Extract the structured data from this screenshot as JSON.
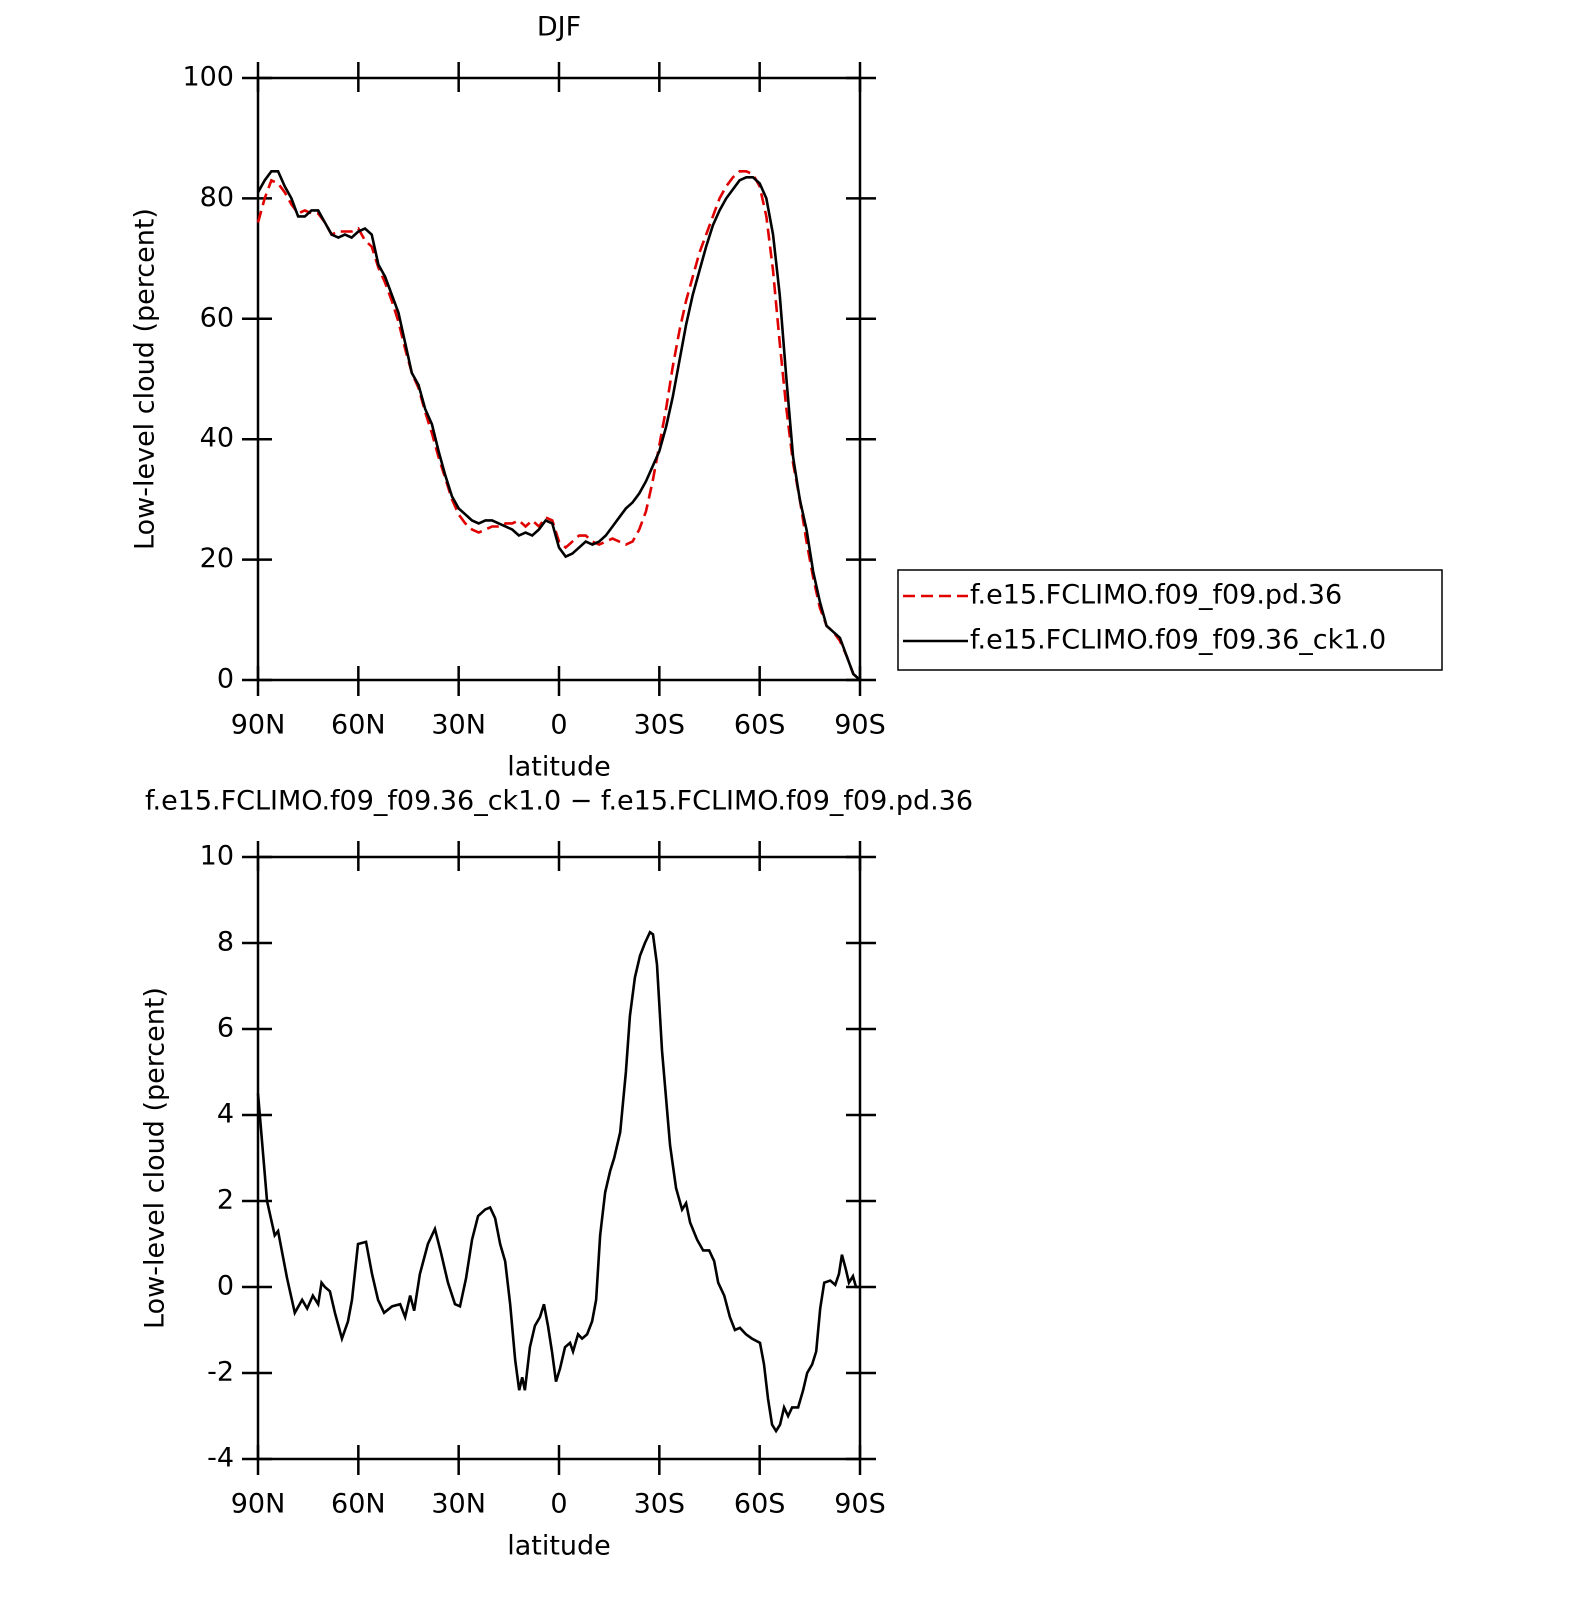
{
  "chart_data": [
    {
      "type": "line",
      "title": "DJF",
      "x_label": "latitude",
      "y_label": "Low-level cloud (percent)",
      "x": [
        90,
        88,
        86,
        84,
        82,
        80,
        78,
        76,
        74,
        72,
        70,
        68,
        66,
        64,
        62,
        60,
        58,
        56,
        54,
        52,
        50,
        48,
        46,
        44,
        42,
        40,
        38,
        36,
        34,
        32,
        30,
        28,
        26,
        24,
        22,
        20,
        18,
        16,
        14,
        12,
        10,
        8,
        6,
        4,
        2,
        0,
        -2,
        -4,
        -6,
        -8,
        -10,
        -12,
        -14,
        -16,
        -18,
        -20,
        -22,
        -24,
        -26,
        -28,
        -30,
        -32,
        -34,
        -36,
        -38,
        -40,
        -42,
        -44,
        -46,
        -48,
        -50,
        -52,
        -54,
        -56,
        -58,
        -60,
        -62,
        -64,
        -66,
        -68,
        -70,
        -72,
        -74,
        -76,
        -78,
        -80,
        -82,
        -84,
        -86,
        -88,
        -90
      ],
      "series": [
        {
          "name": "f.e15.FCLIMO.f09_f09.pd.36",
          "color": "#e00000",
          "line_style": "dashed",
          "values": [
            76,
            80,
            83,
            82.5,
            81,
            79,
            77.5,
            78,
            77.5,
            77.5,
            76,
            74,
            74.5,
            74.5,
            74.5,
            75,
            73,
            72,
            68.5,
            66,
            63,
            59.5,
            55,
            51,
            48.5,
            44.5,
            41,
            37,
            33.5,
            30,
            27.5,
            26,
            25,
            24.5,
            25,
            25.5,
            25.5,
            26,
            26,
            26.5,
            25.5,
            26.5,
            25.5,
            27,
            26.5,
            23,
            22,
            23,
            24,
            24,
            23,
            22.5,
            23,
            23.5,
            23,
            22.5,
            23,
            25,
            28,
            33,
            39,
            45,
            52,
            58,
            63,
            67,
            71,
            74,
            77,
            80,
            82,
            83.5,
            84.5,
            84.5,
            84,
            82,
            77,
            68,
            56,
            45,
            36,
            30,
            23,
            17,
            12,
            9,
            8,
            6.5,
            4,
            1,
            0
          ]
        },
        {
          "name": "f.e15.FCLIMO.f09_f09.36_ck1.0",
          "color": "#000000",
          "line_style": "solid",
          "values": [
            81,
            83,
            84.5,
            84.5,
            82,
            80,
            77,
            77,
            78,
            78,
            76,
            74,
            73.5,
            74,
            73.5,
            74.5,
            75,
            74,
            69,
            67,
            64,
            61,
            56,
            51,
            49,
            45,
            42.5,
            38,
            34,
            30.5,
            28.5,
            27.5,
            26.5,
            26,
            26.5,
            26.5,
            26,
            25.5,
            25,
            24,
            24.5,
            24,
            25,
            26.5,
            26,
            22,
            20.5,
            21,
            22,
            23,
            22.5,
            23,
            24,
            25.5,
            27,
            28.5,
            29.5,
            31,
            33,
            35.5,
            38,
            42,
            47,
            53,
            59,
            64,
            68,
            72,
            75.5,
            78,
            80,
            81.5,
            83,
            83.5,
            83.5,
            82.5,
            80,
            74,
            64,
            50,
            37,
            30,
            25,
            18,
            13,
            9,
            8,
            7,
            4,
            1,
            0
          ]
        }
      ],
      "xlim": [
        90,
        -90
      ],
      "xticks": [
        {
          "value": 90,
          "label": "90N"
        },
        {
          "value": 60,
          "label": "60N"
        },
        {
          "value": 30,
          "label": "30N"
        },
        0,
        {
          "value": -30,
          "label": "30S"
        },
        {
          "value": -60,
          "label": "60S"
        },
        {
          "value": -90,
          "label": "90S"
        }
      ],
      "ylim": [
        0,
        100
      ],
      "yticks": [
        0,
        20,
        40,
        60,
        80,
        100
      ],
      "legend_position": "right"
    },
    {
      "type": "line",
      "title": "f.e15.FCLIMO.f09_f09.36_ck1.0 − f.e15.FCLIMO.f09_f09.pd.36",
      "x_label": "latitude",
      "y_label": "Low-level cloud (percent)",
      "x": [
        90,
        87.3,
        85,
        84,
        81.3,
        79,
        76.8,
        75.3,
        73.6,
        72,
        71,
        70,
        68.5,
        67,
        64.9,
        63.1,
        61.9,
        60.1,
        57.7,
        55.9,
        54.1,
        52.3,
        49.9,
        47.5,
        46,
        44.5,
        43.3,
        41.6,
        39.2,
        37.1,
        35.3,
        33.2,
        31.1,
        29.6,
        27.8,
        26,
        24.2,
        22.1,
        20.6,
        19.1,
        17.6,
        16.1,
        14.6,
        13.1,
        11.9,
        11,
        10.2,
        8.7,
        7.2,
        5.7,
        4.5,
        3.3,
        2.1,
        0.9,
        -0.3,
        -1.8,
        -3.3,
        -4.2,
        -5.7,
        -6.9,
        -8.4,
        -9.9,
        -11.1,
        -12.3,
        -13.8,
        -15.3,
        -16.5,
        -18.3,
        -20,
        -21.2,
        -22.7,
        -24.2,
        -25.7,
        -27.2,
        -28.1,
        -29.3,
        -30.8,
        -33.2,
        -35,
        -36.8,
        -38,
        -39.2,
        -41.3,
        -43.1,
        -44.9,
        -46.4,
        -47.6,
        -49.4,
        -51.1,
        -52.6,
        -54.1,
        -55.9,
        -57.7,
        -60.1,
        -61.3,
        -62.5,
        -63.7,
        -64.9,
        -66.1,
        -67.3,
        -68.5,
        -69.7,
        -71.5,
        -73,
        -74.2,
        -75.7,
        -76.9,
        -78.1,
        -79.3,
        -81.1,
        -82.6,
        -83.7,
        -84.6,
        -85.8,
        -86.7,
        -87.9,
        -88.8,
        -90
      ],
      "values": [
        4.5,
        2,
        1.2,
        1.3,
        0.2,
        -0.6,
        -0.3,
        -0.5,
        -0.2,
        -0.4,
        0.1,
        0,
        -0.1,
        -0.6,
        -1.2,
        -0.8,
        -0.3,
        1,
        1.05,
        0.3,
        -0.3,
        -0.6,
        -0.45,
        -0.4,
        -0.7,
        -0.2,
        -0.55,
        0.3,
        1,
        1.35,
        0.8,
        0.1,
        -0.4,
        -0.45,
        0.2,
        1.1,
        1.65,
        1.8,
        1.85,
        1.6,
        1,
        0.6,
        -0.4,
        -1.7,
        -2.4,
        -2.1,
        -2.4,
        -1.4,
        -0.9,
        -0.7,
        -0.4,
        -0.9,
        -1.5,
        -2.2,
        -1.9,
        -1.4,
        -1.3,
        -1.5,
        -1.1,
        -1.2,
        -1.1,
        -0.8,
        -0.3,
        1.2,
        2.2,
        2.7,
        3,
        3.6,
        5,
        6.3,
        7.2,
        7.7,
        8,
        8.25,
        8.2,
        7.5,
        5.5,
        3.3,
        2.3,
        1.8,
        1.95,
        1.5,
        1.1,
        0.85,
        0.85,
        0.6,
        0.1,
        -0.2,
        -0.7,
        -1,
        -0.95,
        -1.1,
        -1.2,
        -1.3,
        -1.8,
        -2.6,
        -3.2,
        -3.35,
        -3.2,
        -2.8,
        -3,
        -2.8,
        -2.8,
        -2.4,
        -2,
        -1.8,
        -1.5,
        -0.5,
        0.1,
        0.15,
        0.05,
        0.3,
        0.75,
        0.4,
        0.1,
        0.25,
        0,
        0
      ],
      "color": "#000000",
      "xlim": [
        90,
        -90
      ],
      "xticks": [
        {
          "value": 90,
          "label": "90N"
        },
        {
          "value": 60,
          "label": "60N"
        },
        {
          "value": 30,
          "label": "30N"
        },
        0,
        {
          "value": -30,
          "label": "30S"
        },
        {
          "value": -60,
          "label": "60S"
        },
        {
          "value": -90,
          "label": "90S"
        }
      ],
      "ylim": [
        -4,
        10
      ],
      "yticks": [
        -4,
        -2,
        0,
        2,
        4,
        6,
        8,
        10
      ]
    }
  ]
}
